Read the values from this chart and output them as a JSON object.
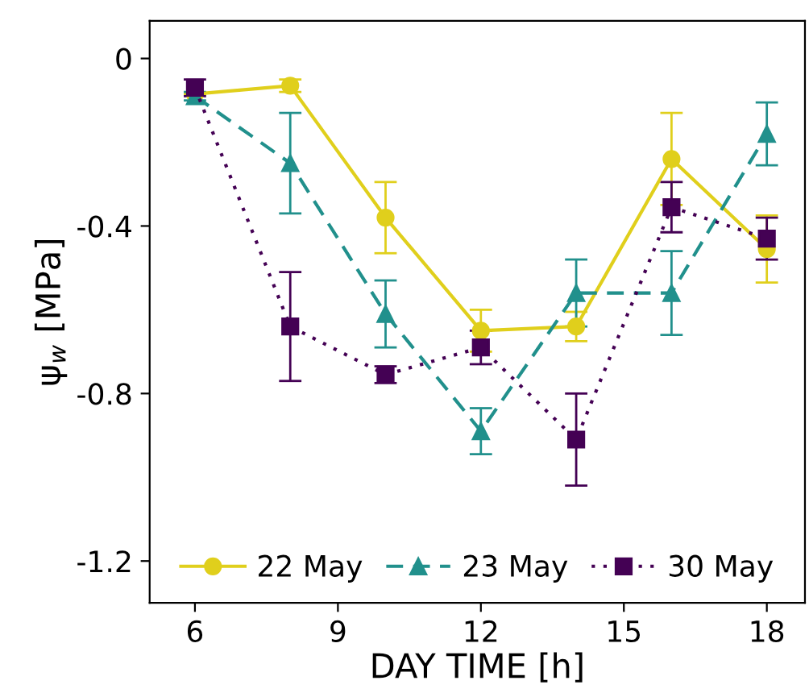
{
  "chart_data": {
    "type": "line",
    "xlabel": "DAY TIME [h]",
    "ylabel": "ψ$_{w}$ [MPa]",
    "xlim": [
      5.05,
      18.8
    ],
    "xticks": [
      6,
      9,
      12,
      15,
      18
    ],
    "ylim": [
      -1.3,
      0.09
    ],
    "yticks": [
      0,
      -0.4,
      -0.8,
      -1.2
    ],
    "series": [
      {
        "name": "22 May",
        "color": "#e0cf1c",
        "marker": "circle",
        "line_style": "solid",
        "x": [
          6,
          8,
          10,
          12,
          14,
          16,
          18
        ],
        "values": [
          -0.085,
          -0.065,
          -0.38,
          -0.65,
          -0.64,
          -0.24,
          -0.455
        ],
        "errors": [
          null,
          0.015,
          0.085,
          0.05,
          0.035,
          0.11,
          0.08
        ]
      },
      {
        "name": "23 May",
        "color": "#21908c",
        "marker": "triangle",
        "line_style": "dashed",
        "x": [
          6,
          8,
          10,
          12,
          14,
          16,
          18
        ],
        "values": [
          -0.09,
          -0.25,
          -0.61,
          -0.89,
          -0.56,
          -0.56,
          -0.18
        ],
        "errors": [
          0.01,
          0.12,
          0.08,
          0.055,
          0.08,
          0.1,
          0.075
        ]
      },
      {
        "name": "30 May",
        "color": "#440154",
        "marker": "square",
        "line_style": "dotted",
        "x": [
          6,
          8,
          10,
          12,
          14,
          16,
          18
        ],
        "values": [
          -0.07,
          -0.64,
          -0.755,
          -0.69,
          -0.91,
          -0.355,
          -0.43
        ],
        "errors": [
          0.02,
          0.13,
          0.02,
          0.04,
          0.11,
          0.06,
          0.05
        ]
      }
    ],
    "legend": "bottom",
    "grid": false
  }
}
